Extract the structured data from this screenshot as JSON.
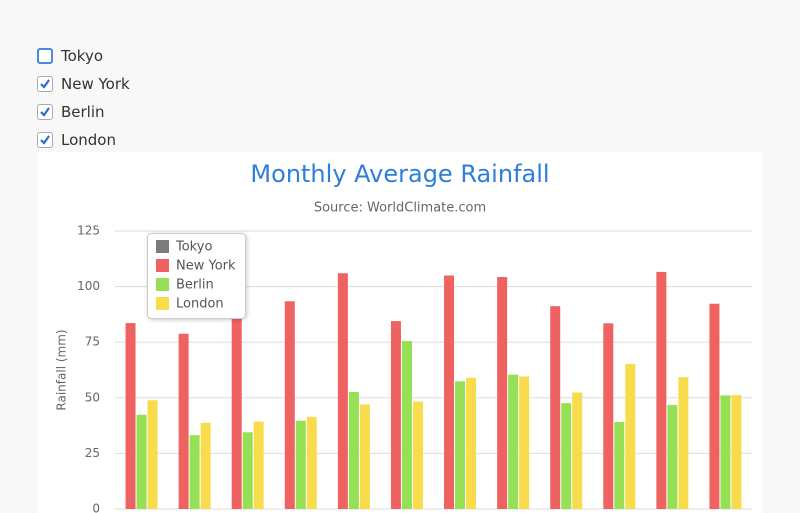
{
  "toggles": [
    {
      "label": "Tokyo",
      "checked": false
    },
    {
      "label": "New York",
      "checked": true
    },
    {
      "label": "Berlin",
      "checked": true
    },
    {
      "label": "London",
      "checked": true
    }
  ],
  "chart_data": {
    "type": "bar",
    "title": "Monthly Average Rainfall",
    "subtitle": "Source: WorldClimate.com",
    "y_label": "Rainfall (mm)",
    "categories": [
      null,
      null,
      null,
      null,
      null,
      null,
      null,
      null,
      null,
      null,
      null,
      null
    ],
    "series": [
      {
        "name": "New York",
        "color": "#ef6262",
        "values": [
          83.6,
          78.8,
          98.5,
          93.4,
          106.0,
          84.5,
          105.0,
          104.3,
          91.2,
          83.5,
          106.6,
          92.3
        ]
      },
      {
        "name": "Berlin",
        "color": "#95e055",
        "values": [
          42.4,
          33.2,
          34.5,
          39.7,
          52.6,
          75.5,
          57.4,
          60.4,
          47.6,
          39.1,
          46.8,
          51.1
        ]
      },
      {
        "name": "London",
        "color": "#f8dc4c",
        "values": [
          48.9,
          38.8,
          39.3,
          41.4,
          47.0,
          48.3,
          59.0,
          59.6,
          52.4,
          65.2,
          59.3,
          51.2
        ]
      }
    ],
    "legend": {
      "position": "upper left",
      "items": [
        {
          "name": "Tokyo",
          "color": "#7c7c7c"
        },
        {
          "name": "New York",
          "color": "#ef6262"
        },
        {
          "name": "Berlin",
          "color": "#95e055"
        },
        {
          "name": "London",
          "color": "#f8dc4c"
        }
      ]
    },
    "ylim": [
      0,
      125
    ],
    "yticks": [
      0,
      25,
      50,
      75,
      100,
      125
    ],
    "grid": true
  }
}
